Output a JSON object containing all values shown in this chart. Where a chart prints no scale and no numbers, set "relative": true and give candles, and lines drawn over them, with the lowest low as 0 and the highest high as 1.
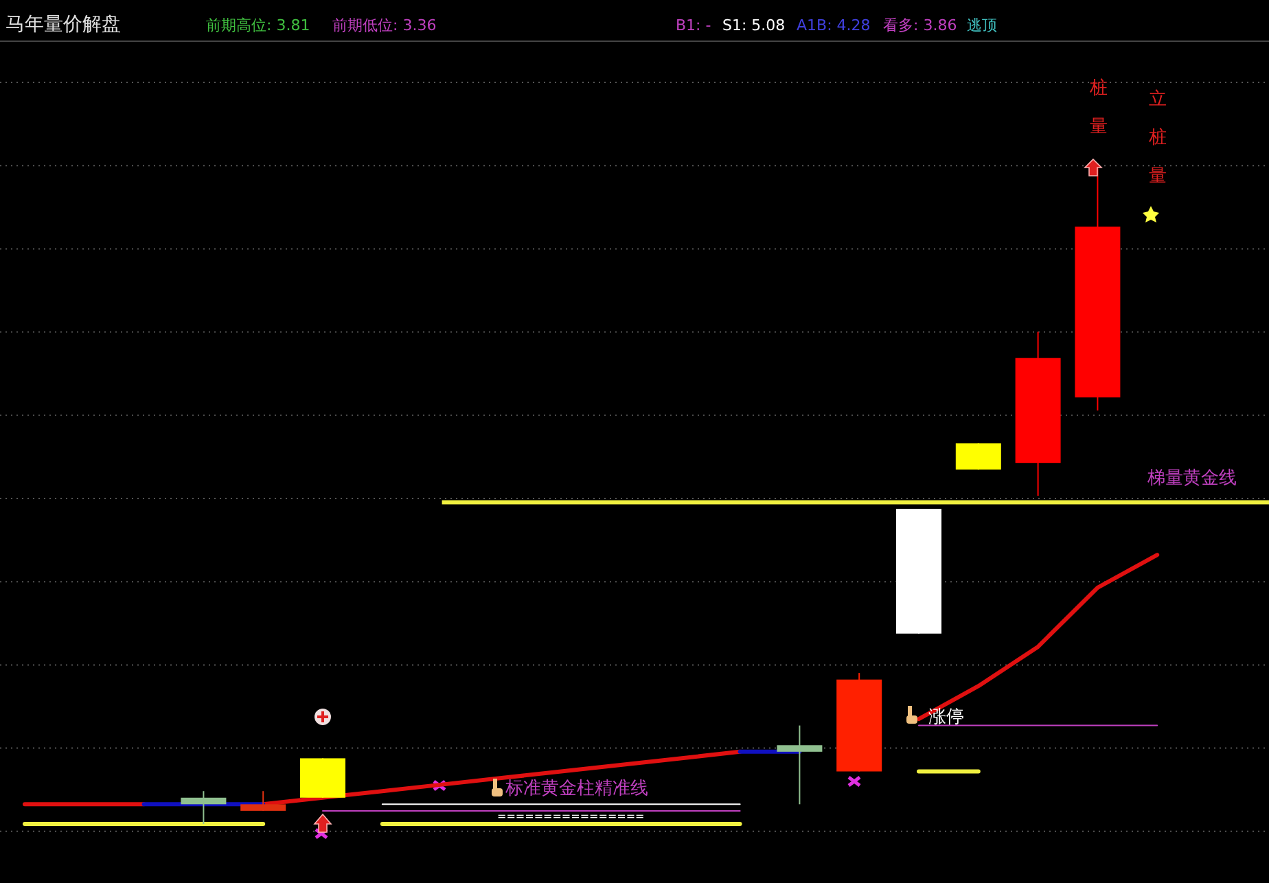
{
  "chart_data": {
    "type": "candlestick",
    "title": "马年量价解盘",
    "relative": true,
    "grid": true,
    "categories": [
      null,
      null,
      null,
      null,
      null,
      null,
      null,
      null,
      null,
      null,
      null,
      null,
      null,
      null,
      null,
      null,
      null,
      null,
      null,
      null
    ],
    "ohlc": [
      null,
      null,
      null,
      [
        0.03,
        0.05,
        0,
        0.04
      ],
      [
        0.02,
        0.05,
        0.02,
        0.03
      ],
      [
        0.04,
        0.1,
        0.04,
        0.1
      ],
      null,
      null,
      null,
      null,
      null,
      null,
      null,
      [
        0.11,
        0.15,
        0.03,
        0.12
      ],
      [
        0.08,
        0.23,
        0.08,
        0.22
      ],
      [
        0.29,
        0.48,
        0.29,
        0.48
      ],
      [
        0.54,
        0.58,
        0.54,
        0.58
      ],
      [
        0.55,
        0.75,
        0.5,
        0.71
      ],
      [
        0.65,
        1,
        0.63,
        0.91
      ],
      null
    ],
    "colors": [
      "#90c090",
      "#90c090",
      "#90c090",
      "#90c090",
      "#e03010",
      "#ffff00",
      "#90c090",
      "#90c090",
      "#90c090",
      "#90c090",
      "#90c090",
      "#90c090",
      "#90c090",
      "#90c090",
      "#ff2000",
      "#ffffff",
      "#ffff00",
      "#ff0000",
      "#ff0000",
      "#ff0000"
    ],
    "series": [
      {
        "type": "line",
        "color": "#e01010",
        "values": [
          0.03,
          0.03,
          0.03,
          null,
          0.03,
          0.04,
          0.05,
          0.06,
          0.07,
          0.08,
          0.09,
          0.1,
          0.11,
          null,
          null,
          0.16,
          0.21,
          0.27,
          0.36,
          0.41
        ]
      },
      {
        "type": "line",
        "color": "#1010c0",
        "values": [
          null,
          null,
          0.03,
          0.03,
          0.03,
          null,
          null,
          null,
          null,
          null,
          null,
          null,
          0.11,
          0.11,
          null,
          null,
          null,
          null,
          null,
          null
        ]
      },
      {
        "type": "line",
        "color": "#f0f040",
        "values": [
          0,
          0,
          0,
          0,
          0,
          null,
          0,
          0,
          0,
          0,
          0,
          0,
          0,
          null,
          null,
          0.08,
          0.08,
          null,
          null,
          null
        ]
      },
      {
        "type": "line",
        "color": "#c040c0",
        "values": [
          null,
          null,
          null,
          null,
          null,
          0.02,
          0.02,
          0.02,
          0.02,
          0.02,
          0.02,
          0.02,
          0.02,
          null,
          null,
          0.15,
          0.15,
          0.15,
          0.15,
          0.15
        ]
      },
      {
        "type": "line",
        "color": "#ffffff",
        "values": [
          null,
          null,
          null,
          null,
          null,
          null,
          0.03,
          0.03,
          0.03,
          0.03,
          0.03,
          0.03,
          0.03,
          null,
          null,
          null,
          null,
          null,
          null,
          null
        ]
      }
    ],
    "ref_lines": [
      {
        "axis": "y",
        "value": 0.49,
        "label": "梯量黄金线",
        "color": "#f0f040"
      }
    ],
    "annotations": [
      "前期高位: 3.81",
      "前期低位: 3.36",
      "B1: -",
      "S1: 5.08",
      "A1B: 4.28",
      "看多: 3.86",
      "逃顶",
      "桩量",
      "立桩量",
      "标准黄金柱精准线",
      "涨停",
      "================"
    ]
  }
}
